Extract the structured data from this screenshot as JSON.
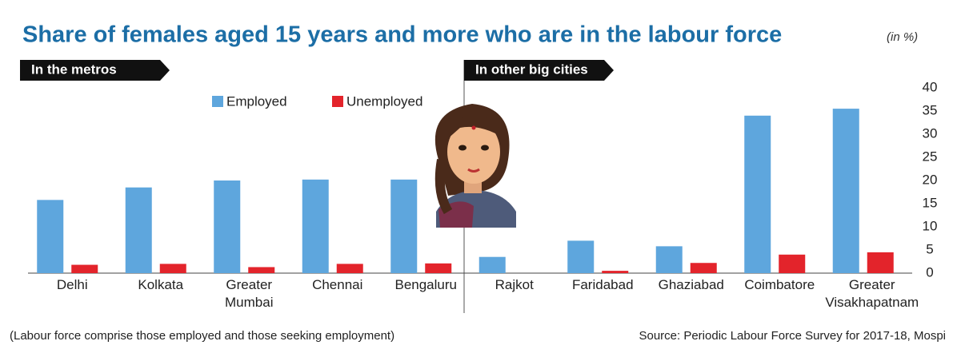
{
  "chart_data": {
    "type": "bar",
    "title": "Share of females aged 15 years and more who are in the labour force",
    "unit_note": "(in %)",
    "sections": [
      "In the metros",
      "In other big cities"
    ],
    "categories": [
      "Delhi",
      "Kolkata",
      "Greater Mumbai",
      "Chennai",
      "Bengaluru",
      "Rajkot",
      "Faridabad",
      "Ghaziabad",
      "Coimbatore",
      "Greater Visakhapatnam"
    ],
    "series": [
      {
        "name": "Employed",
        "color": "#5ea6dd",
        "values": [
          15.8,
          18.5,
          20.0,
          20.2,
          20.2,
          3.5,
          7.0,
          5.8,
          34.0,
          35.5
        ]
      },
      {
        "name": "Unemployed",
        "color": "#e3242b",
        "values": [
          1.8,
          2.0,
          1.3,
          2.0,
          2.1,
          0,
          0.5,
          2.2,
          4.0,
          4.5
        ]
      }
    ],
    "ylim": [
      0,
      40
    ],
    "yticks": [
      0,
      5,
      10,
      15,
      20,
      25,
      30,
      35,
      40
    ],
    "y_axis_side": "right",
    "legend_position": "top-left",
    "grid": false
  },
  "footnote": "(Labour force comprise those employed and those seeking employment)",
  "source": "Source: Periodic Labour Force Survey for 2017-18, Mospi"
}
